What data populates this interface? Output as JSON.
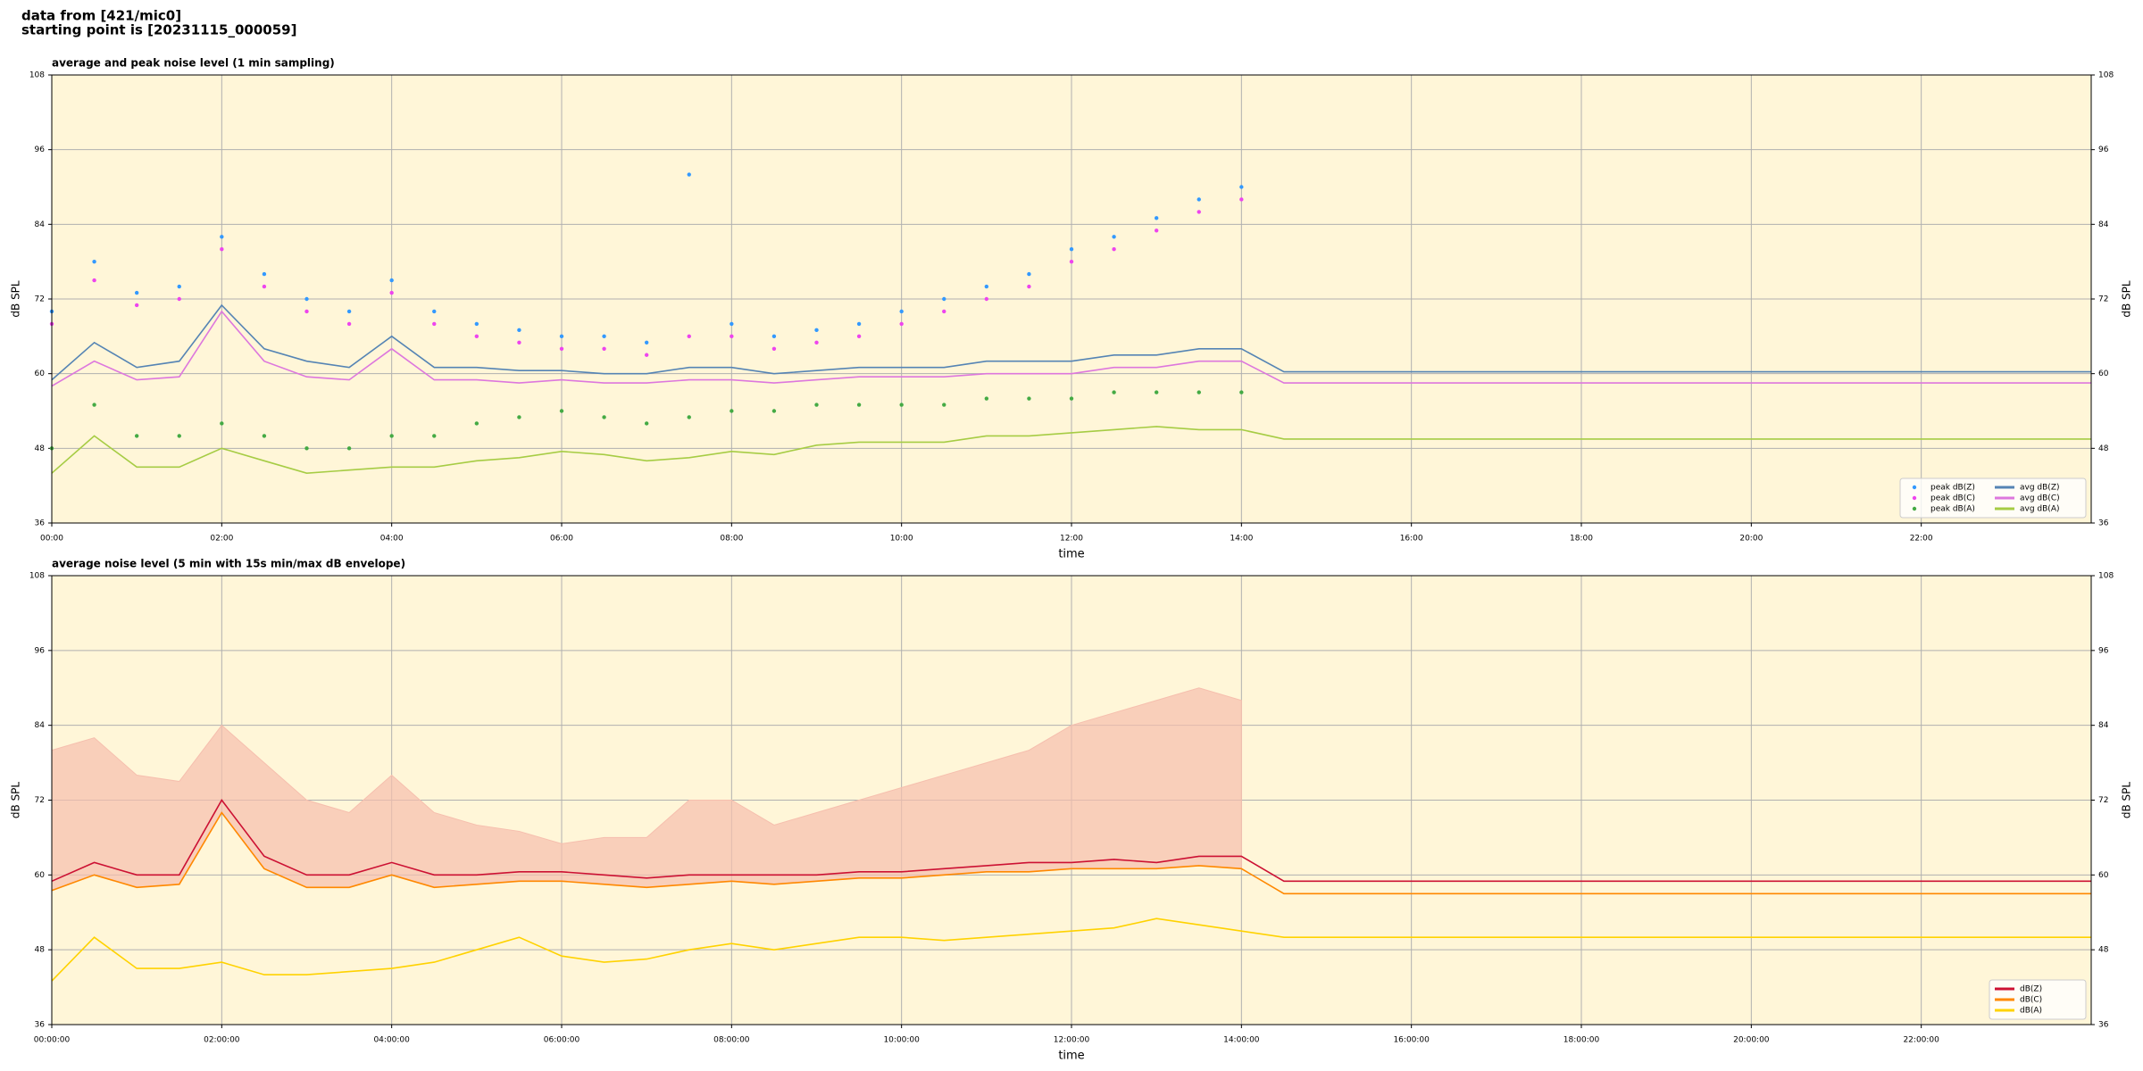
{
  "header": [
    "data from [421/mic0]",
    "starting point is [20231115_000059]"
  ],
  "chart_data": [
    {
      "type": "line",
      "title": "average and peak noise level (1 min sampling)",
      "xlabel": "time",
      "ylabel": "dB SPL",
      "x": [
        0,
        30,
        60,
        90,
        120,
        150,
        180,
        210,
        240,
        270,
        300,
        330,
        360,
        390,
        420,
        450,
        480,
        510,
        540,
        570,
        600,
        630,
        660,
        690,
        720,
        750,
        780,
        810,
        840,
        870,
        1440
      ],
      "xlim": [
        0,
        1440
      ],
      "xticks": [
        {
          "value": 0,
          "label": "00:00"
        },
        {
          "value": 120,
          "label": "02:00"
        },
        {
          "value": 240,
          "label": "04:00"
        },
        {
          "value": 360,
          "label": "06:00"
        },
        {
          "value": 480,
          "label": "08:00"
        },
        {
          "value": 600,
          "label": "10:00"
        },
        {
          "value": 720,
          "label": "12:00"
        },
        {
          "value": 840,
          "label": "14:00"
        },
        {
          "value": 960,
          "label": "16:00"
        },
        {
          "value": 1080,
          "label": "18:00"
        },
        {
          "value": 1200,
          "label": "20:00"
        },
        {
          "value": 1320,
          "label": "22:00"
        }
      ],
      "ylim": [
        36,
        108
      ],
      "yticks": [
        36,
        48,
        60,
        72,
        84,
        96,
        108
      ],
      "grid": true,
      "background": "#fff6d8",
      "legend": {
        "loc": "lower right",
        "ncol": 2
      },
      "series": [
        {
          "name": "peak dB(Z)",
          "type": "scatter",
          "color": "#3399ff",
          "values": [
            70,
            78,
            73,
            74,
            82,
            76,
            72,
            70,
            75,
            70,
            68,
            67,
            66,
            66,
            65,
            92,
            68,
            66,
            67,
            68,
            70,
            72,
            74,
            76,
            80,
            82,
            85,
            88,
            90,
            null,
            null
          ]
        },
        {
          "name": "peak dB(C)",
          "type": "scatter",
          "color": "#ee44ee",
          "values": [
            68,
            75,
            71,
            72,
            80,
            74,
            70,
            68,
            73,
            68,
            66,
            65,
            64,
            64,
            63,
            66,
            66,
            64,
            65,
            66,
            68,
            70,
            72,
            74,
            78,
            80,
            83,
            86,
            88,
            null,
            null
          ]
        },
        {
          "name": "peak dB(A)",
          "type": "scatter",
          "color": "#44aa44",
          "values": [
            48,
            55,
            50,
            50,
            52,
            50,
            48,
            48,
            50,
            50,
            52,
            53,
            54,
            53,
            52,
            53,
            54,
            54,
            55,
            55,
            55,
            55,
            56,
            56,
            56,
            57,
            57,
            57,
            57,
            null,
            null
          ]
        },
        {
          "name": "avg dB(Z)",
          "type": "line",
          "color": "#5584b4",
          "values": [
            59,
            65,
            61,
            62,
            71,
            64,
            62,
            61,
            66,
            61,
            61,
            60.5,
            60.5,
            60,
            60,
            61,
            61,
            60,
            60.5,
            61,
            61,
            61,
            62,
            62,
            62,
            63,
            63,
            64,
            64,
            60.3,
            60.3
          ]
        },
        {
          "name": "avg dB(C)",
          "type": "line",
          "color": "#dd77dd",
          "values": [
            58,
            62,
            59,
            59.5,
            70,
            62,
            59.5,
            59,
            64,
            59,
            59,
            58.5,
            59,
            58.5,
            58.5,
            59,
            59,
            58.5,
            59,
            59.5,
            59.5,
            59.5,
            60,
            60,
            60,
            61,
            61,
            62,
            62,
            58.5,
            58.5
          ]
        },
        {
          "name": "avg dB(A)",
          "type": "line",
          "color": "#a6cc44",
          "values": [
            44,
            50,
            45,
            45,
            48,
            46,
            44,
            44.5,
            45,
            45,
            46,
            46.5,
            47.5,
            47,
            46,
            46.5,
            47.5,
            47,
            48.5,
            49,
            49,
            49,
            50,
            50,
            50.5,
            51,
            51.5,
            51,
            51,
            49.5,
            49.5
          ]
        }
      ]
    },
    {
      "type": "line",
      "title": "average noise level (5 min with 15s min/max dB envelope)",
      "xlabel": "time",
      "ylabel": "dB SPL",
      "x": [
        0,
        30,
        60,
        90,
        120,
        150,
        180,
        210,
        240,
        270,
        300,
        330,
        360,
        390,
        420,
        450,
        480,
        510,
        540,
        570,
        600,
        630,
        660,
        690,
        720,
        750,
        780,
        810,
        840,
        870,
        1440
      ],
      "xlim": [
        0,
        1440
      ],
      "xticks": [
        {
          "value": 0,
          "label": "00:00:00"
        },
        {
          "value": 120,
          "label": "02:00:00"
        },
        {
          "value": 240,
          "label": "04:00:00"
        },
        {
          "value": 360,
          "label": "06:00:00"
        },
        {
          "value": 480,
          "label": "08:00:00"
        },
        {
          "value": 600,
          "label": "10:00:00"
        },
        {
          "value": 720,
          "label": "12:00:00"
        },
        {
          "value": 840,
          "label": "14:00:00"
        },
        {
          "value": 960,
          "label": "16:00:00"
        },
        {
          "value": 1080,
          "label": "18:00:00"
        },
        {
          "value": 1200,
          "label": "20:00:00"
        },
        {
          "value": 1320,
          "label": "22:00:00"
        }
      ],
      "ylim": [
        36,
        108
      ],
      "yticks": [
        36,
        48,
        60,
        72,
        84,
        96,
        108
      ],
      "grid": true,
      "background": "#fff6d8",
      "legend": {
        "loc": "lower right",
        "ncol": 1
      },
      "envelope": {
        "color": "#f6bfae",
        "values": [
          80,
          82,
          76,
          75,
          84,
          78,
          72,
          70,
          76,
          70,
          68,
          67,
          65,
          66,
          66,
          72,
          72,
          68,
          70,
          72,
          74,
          76,
          78,
          80,
          84,
          86,
          88,
          90,
          88,
          null,
          null
        ]
      },
      "series": [
        {
          "name": "dB(Z)",
          "type": "line",
          "color": "#cc1133",
          "values": [
            59,
            62,
            60,
            60,
            72,
            63,
            60,
            60,
            62,
            60,
            60,
            60.5,
            60.5,
            60,
            59.5,
            60,
            60,
            60,
            60,
            60.5,
            60.5,
            61,
            61.5,
            62,
            62,
            62.5,
            62,
            63,
            63,
            59,
            59
          ]
        },
        {
          "name": "dB(C)",
          "type": "line",
          "color": "#ff8800",
          "values": [
            57.5,
            60,
            58,
            58.5,
            70,
            61,
            58,
            58,
            60,
            58,
            58.5,
            59,
            59,
            58.5,
            58,
            58.5,
            59,
            58.5,
            59,
            59.5,
            59.5,
            60,
            60.5,
            60.5,
            61,
            61,
            61,
            61.5,
            61,
            57,
            57
          ]
        },
        {
          "name": "dB(A)",
          "type": "line",
          "color": "#ffd200",
          "values": [
            43,
            50,
            45,
            45,
            46,
            44,
            44,
            44.5,
            45,
            46,
            48,
            50,
            47,
            46,
            46.5,
            48,
            49,
            48,
            49,
            50,
            50,
            49.5,
            50,
            50.5,
            51,
            51.5,
            53,
            52,
            51,
            50,
            50
          ]
        }
      ]
    }
  ]
}
